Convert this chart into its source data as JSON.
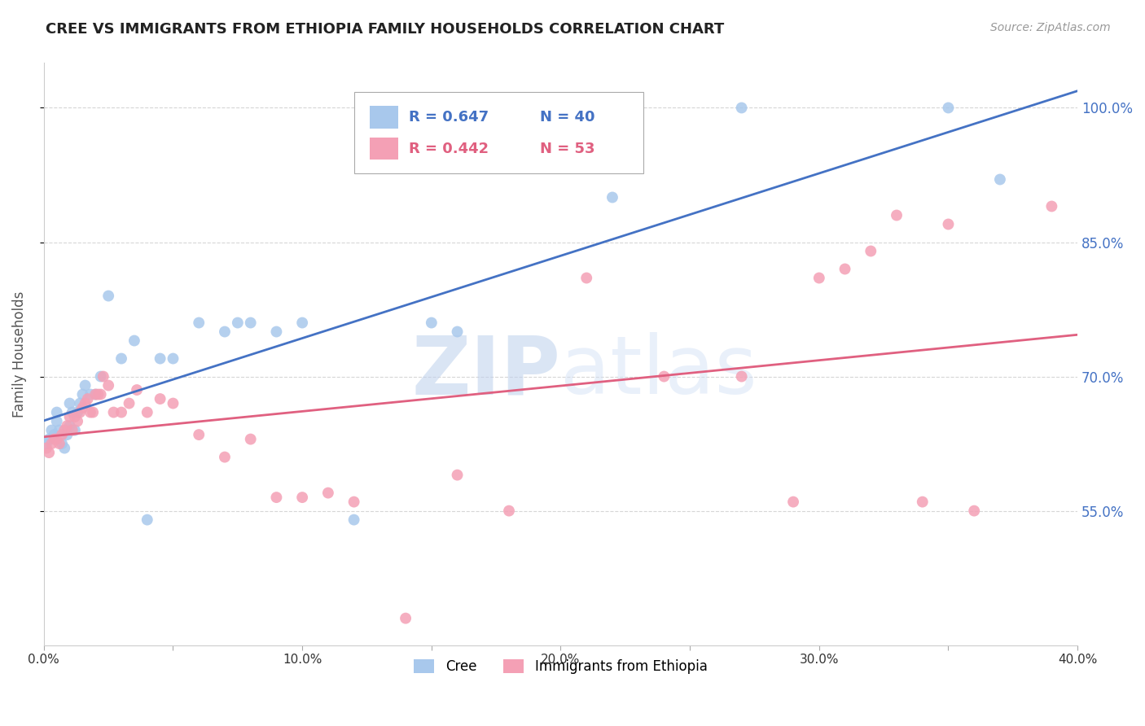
{
  "title": "CREE VS IMMIGRANTS FROM ETHIOPIA FAMILY HOUSEHOLDS CORRELATION CHART",
  "source": "Source: ZipAtlas.com",
  "ylabel": "Family Households",
  "xlim": [
    0.0,
    0.4
  ],
  "ylim": [
    0.4,
    1.05
  ],
  "yticks": [
    0.55,
    0.7,
    0.85,
    1.0
  ],
  "ytick_labels": [
    "55.0%",
    "70.0%",
    "85.0%",
    "100.0%"
  ],
  "xticks": [
    0.0,
    0.05,
    0.1,
    0.15,
    0.2,
    0.25,
    0.3,
    0.35,
    0.4
  ],
  "xtick_labels": [
    "0.0%",
    "",
    "10.0%",
    "",
    "20.0%",
    "",
    "30.0%",
    "",
    "40.0%"
  ],
  "blue_R": 0.647,
  "blue_N": 40,
  "pink_R": 0.442,
  "pink_N": 53,
  "blue_color": "#A8C8EC",
  "pink_color": "#F4A0B5",
  "blue_line_color": "#4472C4",
  "pink_line_color": "#E06080",
  "blue_scatter_x": [
    0.001,
    0.002,
    0.003,
    0.004,
    0.005,
    0.005,
    0.006,
    0.007,
    0.008,
    0.009,
    0.01,
    0.01,
    0.011,
    0.012,
    0.013,
    0.014,
    0.015,
    0.016,
    0.018,
    0.02,
    0.022,
    0.025,
    0.03,
    0.035,
    0.04,
    0.045,
    0.05,
    0.06,
    0.07,
    0.075,
    0.08,
    0.09,
    0.1,
    0.12,
    0.15,
    0.16,
    0.22,
    0.27,
    0.35,
    0.37
  ],
  "blue_scatter_y": [
    0.625,
    0.63,
    0.64,
    0.635,
    0.65,
    0.66,
    0.64,
    0.625,
    0.62,
    0.635,
    0.67,
    0.645,
    0.66,
    0.64,
    0.66,
    0.67,
    0.68,
    0.69,
    0.68,
    0.68,
    0.7,
    0.79,
    0.72,
    0.74,
    0.54,
    0.72,
    0.72,
    0.76,
    0.75,
    0.76,
    0.76,
    0.75,
    0.76,
    0.54,
    0.76,
    0.75,
    0.9,
    1.0,
    1.0,
    0.92
  ],
  "pink_scatter_x": [
    0.001,
    0.002,
    0.003,
    0.004,
    0.005,
    0.006,
    0.007,
    0.008,
    0.009,
    0.01,
    0.011,
    0.012,
    0.013,
    0.014,
    0.015,
    0.016,
    0.017,
    0.018,
    0.019,
    0.02,
    0.021,
    0.022,
    0.023,
    0.025,
    0.027,
    0.03,
    0.033,
    0.036,
    0.04,
    0.045,
    0.05,
    0.06,
    0.07,
    0.08,
    0.09,
    0.1,
    0.11,
    0.12,
    0.14,
    0.16,
    0.18,
    0.21,
    0.24,
    0.27,
    0.29,
    0.3,
    0.31,
    0.32,
    0.33,
    0.34,
    0.35,
    0.36,
    0.39
  ],
  "pink_scatter_y": [
    0.62,
    0.615,
    0.625,
    0.63,
    0.63,
    0.625,
    0.635,
    0.64,
    0.645,
    0.655,
    0.64,
    0.655,
    0.65,
    0.66,
    0.665,
    0.67,
    0.675,
    0.66,
    0.66,
    0.68,
    0.68,
    0.68,
    0.7,
    0.69,
    0.66,
    0.66,
    0.67,
    0.685,
    0.66,
    0.675,
    0.67,
    0.635,
    0.61,
    0.63,
    0.565,
    0.565,
    0.57,
    0.56,
    0.43,
    0.59,
    0.55,
    0.81,
    0.7,
    0.7,
    0.56,
    0.81,
    0.82,
    0.84,
    0.88,
    0.56,
    0.87,
    0.55,
    0.89
  ],
  "watermark_zip": "ZIP",
  "watermark_atlas": "atlas",
  "legend_blue_label": "Cree",
  "legend_pink_label": "Immigrants from Ethiopia",
  "background_color": "#FFFFFF",
  "grid_color": "#CCCCCC"
}
